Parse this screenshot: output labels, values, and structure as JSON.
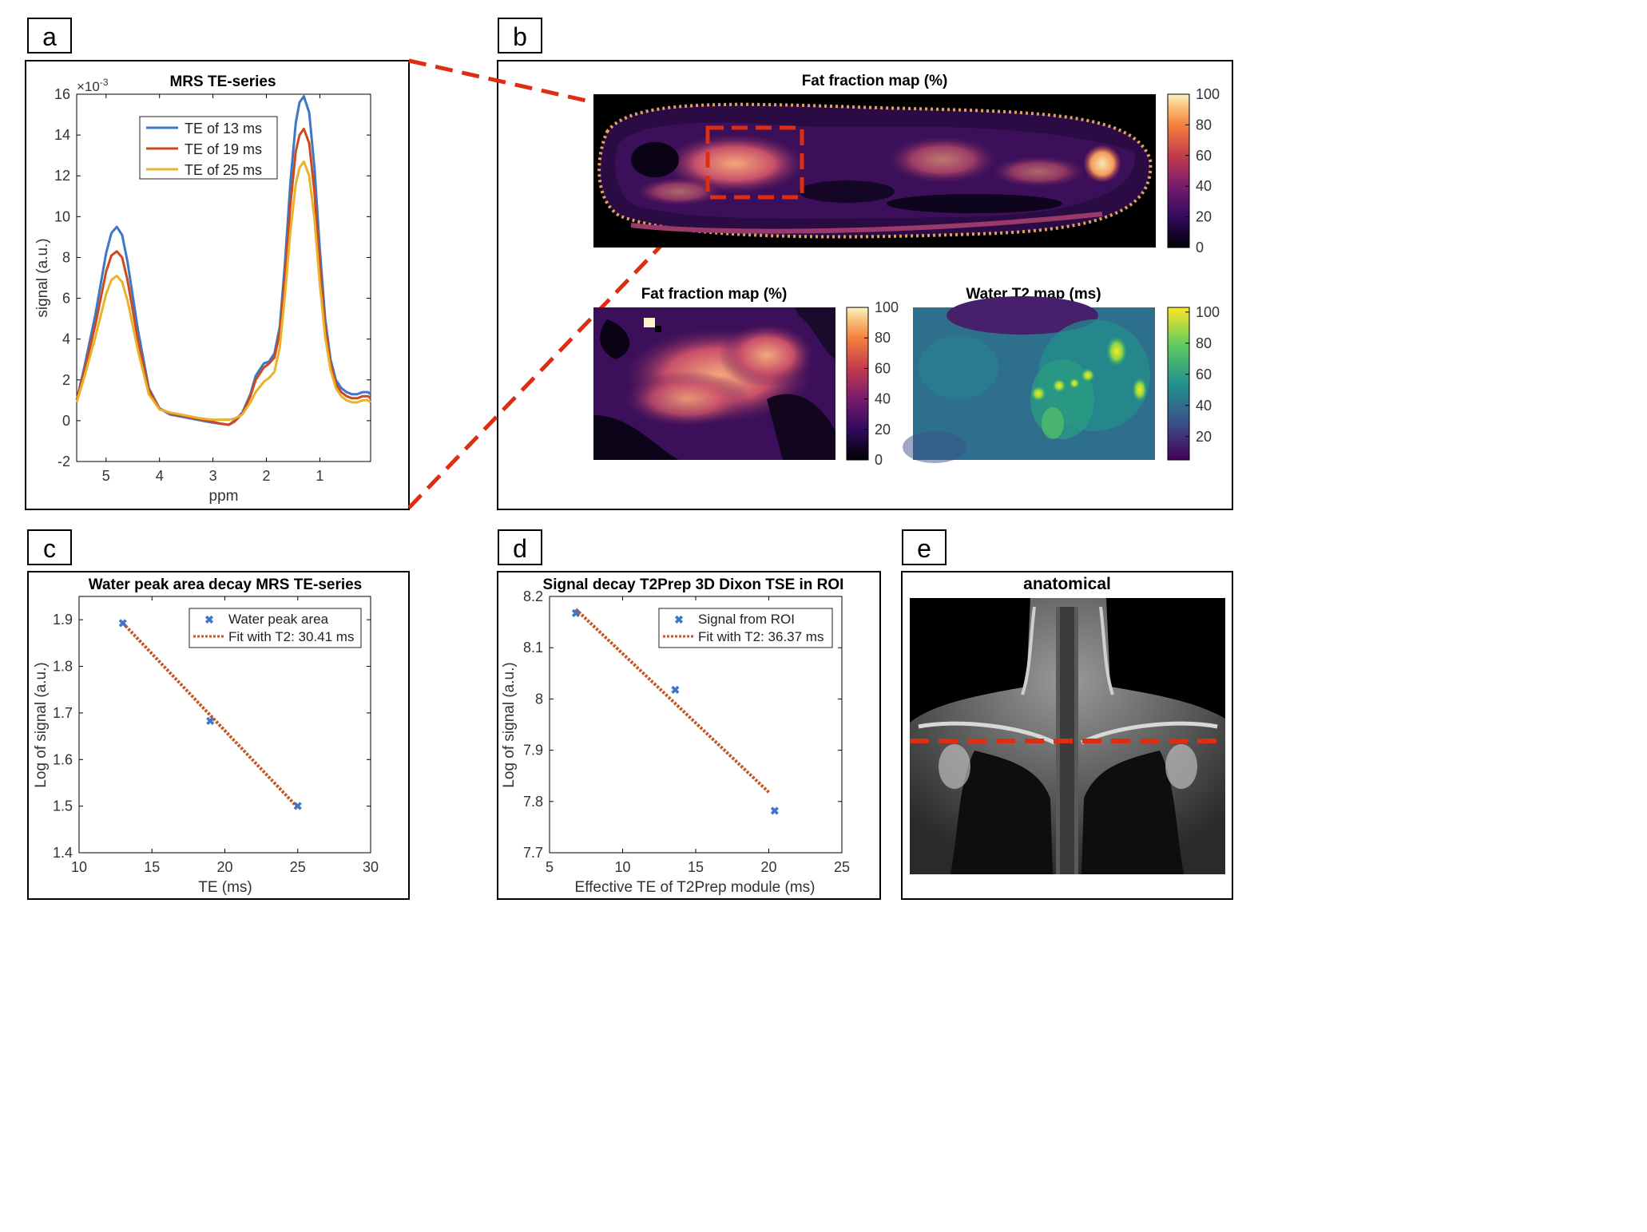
{
  "panels": {
    "a": {
      "letter": "a"
    },
    "b": {
      "letter": "b"
    },
    "c": {
      "letter": "c"
    },
    "d": {
      "letter": "d"
    },
    "e": {
      "letter": "e"
    }
  },
  "colors": {
    "te13": "#3D77C5",
    "te19": "#CC4A1E",
    "te25": "#E8B22C",
    "fit": "#C4561E",
    "marker": "#3D77C5",
    "dashed_roi": "#DD2E12"
  },
  "chart_data": [
    {
      "id": "a",
      "type": "line",
      "title": "MRS TE-series",
      "xlabel": "ppm",
      "ylabel": "signal (a.u.)",
      "exponent_label": "×10",
      "exponent_power": "-3",
      "xlim": [
        5.55,
        0.05
      ],
      "x_reversed": true,
      "ylim": [
        -2,
        16
      ],
      "xticks": [
        "5",
        "4",
        "3",
        "2",
        "1"
      ],
      "xtick_values": [
        5,
        4,
        3,
        2,
        1
      ],
      "yticks": [
        "-2",
        "0",
        "2",
        "4",
        "6",
        "8",
        "10",
        "12",
        "14",
        "16"
      ],
      "ytick_values": [
        -2,
        0,
        2,
        4,
        6,
        8,
        10,
        12,
        14,
        16
      ],
      "legend_position": "top-center",
      "x": [
        5.55,
        5.4,
        5.2,
        5.0,
        4.9,
        4.8,
        4.7,
        4.6,
        4.4,
        4.2,
        4.0,
        3.8,
        3.6,
        3.4,
        3.2,
        3.0,
        2.85,
        2.7,
        2.6,
        2.45,
        2.3,
        2.2,
        2.05,
        1.95,
        1.85,
        1.75,
        1.65,
        1.55,
        1.45,
        1.38,
        1.3,
        1.2,
        1.1,
        1.0,
        0.9,
        0.8,
        0.7,
        0.6,
        0.5,
        0.4,
        0.3,
        0.2,
        0.1,
        0.05
      ],
      "series": [
        {
          "name": "TE of 13 ms",
          "color_key": "te13",
          "values": [
            1.0,
            2.7,
            5.2,
            8.2,
            9.2,
            9.5,
            9.1,
            7.8,
            4.4,
            1.6,
            0.6,
            0.3,
            0.2,
            0.1,
            0.0,
            -0.1,
            -0.15,
            -0.2,
            0.0,
            0.4,
            1.3,
            2.2,
            2.8,
            2.9,
            3.3,
            4.6,
            7.8,
            11.7,
            14.6,
            15.6,
            15.9,
            15.1,
            12.4,
            8.4,
            5.0,
            3.0,
            2.0,
            1.6,
            1.4,
            1.3,
            1.3,
            1.4,
            1.4,
            1.3
          ]
        },
        {
          "name": "TE of 19 ms",
          "color_key": "te19",
          "values": [
            1.0,
            2.5,
            4.7,
            7.3,
            8.1,
            8.3,
            8.0,
            6.9,
            3.9,
            1.5,
            0.6,
            0.35,
            0.25,
            0.15,
            0.05,
            -0.05,
            -0.15,
            -0.2,
            -0.05,
            0.35,
            1.2,
            2.0,
            2.6,
            2.8,
            3.1,
            4.3,
            7.1,
            10.6,
            13.2,
            14.0,
            14.3,
            13.6,
            11.2,
            7.6,
            4.6,
            2.8,
            1.8,
            1.4,
            1.2,
            1.1,
            1.1,
            1.2,
            1.2,
            1.1
          ]
        },
        {
          "name": "TE of 25 ms",
          "color_key": "te25",
          "values": [
            0.9,
            2.2,
            4.1,
            6.2,
            6.9,
            7.1,
            6.8,
            5.9,
            3.4,
            1.3,
            0.55,
            0.4,
            0.3,
            0.2,
            0.1,
            0.05,
            0.05,
            0.05,
            0.1,
            0.3,
            0.9,
            1.4,
            1.9,
            2.1,
            2.4,
            3.6,
            6.2,
            9.3,
            11.6,
            12.4,
            12.7,
            12.0,
            9.9,
            6.7,
            4.1,
            2.5,
            1.6,
            1.2,
            1.0,
            0.9,
            0.9,
            1.0,
            1.0,
            0.9
          ]
        }
      ]
    },
    {
      "id": "c",
      "type": "scatter",
      "title": "Water peak area decay MRS TE-series",
      "xlabel": "TE (ms)",
      "ylabel": "Log of signal (a.u.)",
      "xlim": [
        10,
        30
      ],
      "ylim": [
        1.4,
        1.95
      ],
      "xticks": [
        "10",
        "15",
        "20",
        "25",
        "30"
      ],
      "xtick_values": [
        10,
        15,
        20,
        25,
        30
      ],
      "yticks": [
        "1.4",
        "1.5",
        "1.6",
        "1.7",
        "1.8",
        "1.9"
      ],
      "ytick_values": [
        1.4,
        1.5,
        1.6,
        1.7,
        1.8,
        1.9
      ],
      "legend_position": "top-right",
      "points": {
        "name": "Water peak area",
        "x": [
          13,
          19,
          25
        ],
        "y": [
          1.893,
          1.683,
          1.5
        ]
      },
      "fit": {
        "name": "Fit with T2: 30.41 ms",
        "x": [
          13,
          25
        ],
        "y": [
          1.893,
          1.497
        ]
      }
    },
    {
      "id": "d",
      "type": "scatter",
      "title": "Signal decay T2Prep 3D Dixon TSE in ROI",
      "xlabel": "Effective TE of T2Prep module (ms)",
      "ylabel": "Log of signal (a.u.)",
      "xlim": [
        5,
        25
      ],
      "ylim": [
        7.7,
        8.2
      ],
      "xticks": [
        "5",
        "10",
        "15",
        "20",
        "25"
      ],
      "xtick_values": [
        5,
        10,
        15,
        20,
        25
      ],
      "yticks": [
        "7.7",
        "7.8",
        "7.9",
        "8",
        "8.1",
        "8.2"
      ],
      "ytick_values": [
        7.7,
        7.8,
        7.9,
        8.0,
        8.1,
        8.2
      ],
      "legend_position": "top-right",
      "points": {
        "name": "Signal from ROI",
        "x": [
          6.8,
          13.6,
          20.4
        ],
        "y": [
          8.167,
          8.018,
          7.782
        ]
      },
      "fit": {
        "name": "Fit with T2: 36.37 ms",
        "x": [
          6.8,
          20.0
        ],
        "y": [
          8.175,
          7.818
        ]
      }
    }
  ],
  "maps": {
    "top": {
      "title": "Fat fraction map (%)",
      "colorbar_ticks": [
        "100",
        "80",
        "60",
        "40",
        "20",
        "0"
      ]
    },
    "bottom_left": {
      "title": "Fat fraction map (%)",
      "colorbar_ticks": [
        "100",
        "80",
        "60",
        "40",
        "20",
        "0"
      ]
    },
    "bottom_right": {
      "title": "Water T2 map (ms)",
      "colorbar_ticks": [
        "100",
        "80",
        "60",
        "40",
        "20"
      ]
    }
  },
  "anatomical": {
    "title": "anatomical"
  }
}
